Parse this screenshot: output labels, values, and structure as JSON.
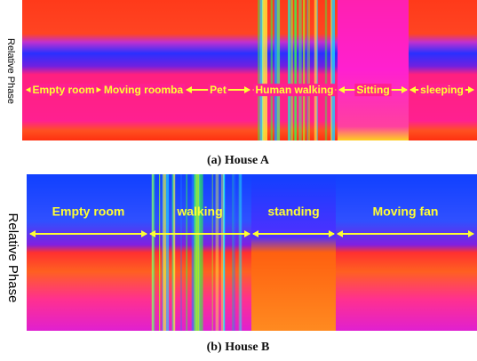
{
  "panels": [
    {
      "y_label": "Relative Phase",
      "caption": "(a) House A",
      "segments": [
        "Empty room",
        "Moving roomba",
        "Pet",
        "Human walking",
        "Sitting",
        "sleeping"
      ]
    },
    {
      "y_label": "Relative Phase",
      "caption": "(b) House B",
      "segments": [
        "Empty room",
        "walking",
        "standing",
        "Moving fan"
      ]
    }
  ]
}
